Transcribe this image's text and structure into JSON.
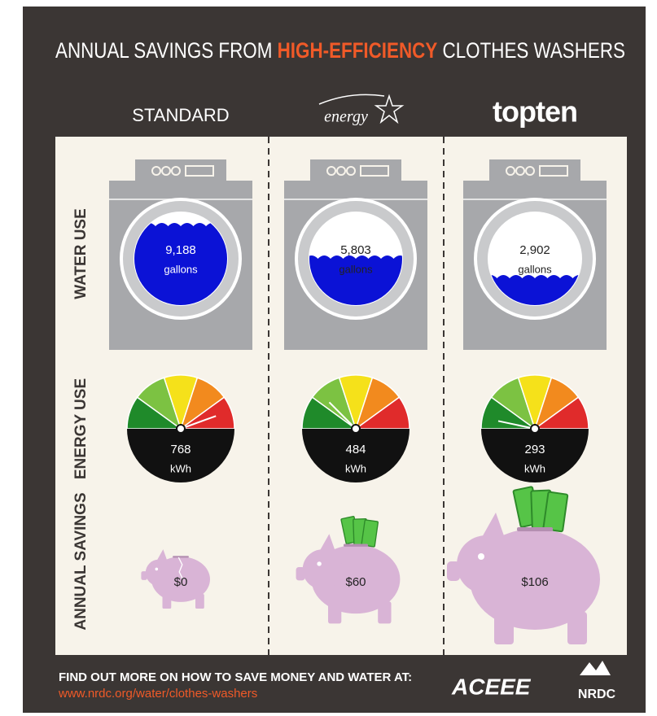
{
  "header": {
    "title": [
      "ANNUAL SAVINGS FROM",
      "HIGH-EFFICIENCY",
      "CLOTHES WASHERS"
    ]
  },
  "rows": [
    "WATER USE",
    "ENERGY USE",
    "ANNUAL SAVINGS"
  ],
  "columns": [
    {
      "label": "STANDARD",
      "water": {
        "value": "9,188",
        "unit": "gallons"
      },
      "energy": {
        "value": "768",
        "unit": "kWh"
      },
      "savings": "$0"
    },
    {
      "label": "energy",
      "water": {
        "value": "5,803",
        "unit": "gallons"
      },
      "energy": {
        "value": "484",
        "unit": "kWh"
      },
      "savings": "$60"
    },
    {
      "label": "topten",
      "water": {
        "value": "2,902",
        "unit": "gallons"
      },
      "energy": {
        "value": "293",
        "unit": "kWh"
      },
      "savings": "$106"
    }
  ],
  "footer": {
    "text": "FIND OUT MORE ON HOW TO SAVE MONEY AND WATER AT:",
    "link": "www.nrdc.org/water/clothes-washers",
    "logos": [
      "ACEEE",
      "NRDC"
    ]
  }
}
